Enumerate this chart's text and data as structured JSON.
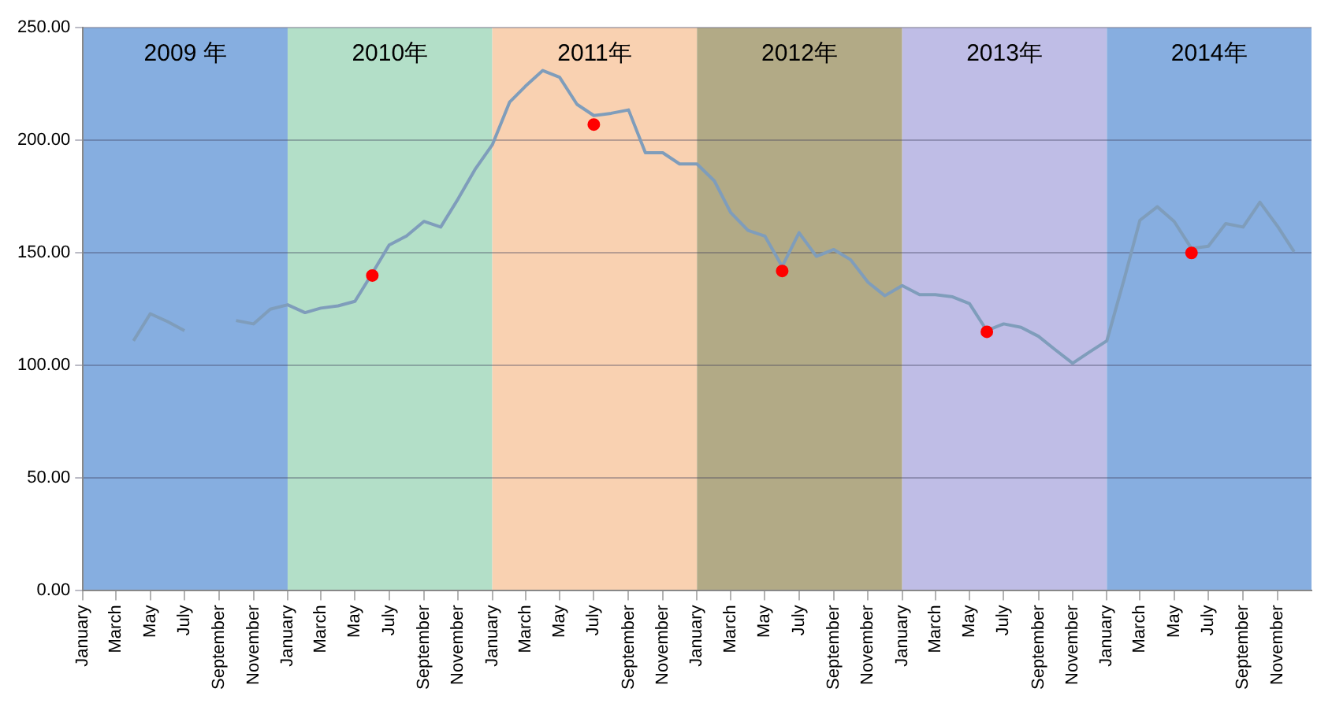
{
  "chart_data": {
    "type": "line",
    "x": [
      "2009-04",
      "2009-05",
      "2009-06",
      "2009-07",
      "2009-08",
      "2009-09",
      "2009-10",
      "2009-11",
      "2009-12",
      "2010-01",
      "2010-02",
      "2010-03",
      "2010-04",
      "2010-05",
      "2010-06",
      "2010-07",
      "2010-08",
      "2010-09",
      "2010-10",
      "2010-11",
      "2010-12",
      "2011-01",
      "2011-02",
      "2011-03",
      "2011-04",
      "2011-05",
      "2011-06",
      "2011-07",
      "2011-08",
      "2011-09",
      "2011-10",
      "2011-11",
      "2011-12",
      "2012-01",
      "2012-02",
      "2012-03",
      "2012-04",
      "2012-05",
      "2012-06",
      "2012-07",
      "2012-08",
      "2012-09",
      "2012-10",
      "2012-11",
      "2012-12",
      "2013-01",
      "2013-02",
      "2013-03",
      "2013-04",
      "2013-05",
      "2013-06",
      "2013-07",
      "2013-08",
      "2013-09",
      "2013-10",
      "2013-11",
      "2013-12",
      "2014-01",
      "2014-02",
      "2014-03",
      "2014-04",
      "2014-05",
      "2014-06",
      "2014-07",
      "2014-08",
      "2014-09",
      "2014-10",
      "2014-11",
      "2014-12"
    ],
    "series": [
      {
        "type": "line",
        "marker": "none",
        "color": "#7f9dbb",
        "values": [
          111,
          123,
          119.5,
          115.5,
          null,
          null,
          120,
          118.5,
          125,
          127,
          123.5,
          125.5,
          126.5,
          128.5,
          141,
          153.5,
          157.5,
          164,
          161.5,
          174,
          187,
          198,
          217,
          224,
          231,
          228,
          216,
          211,
          212,
          213.5,
          194.5,
          194.5,
          189.5,
          189.5,
          182,
          168,
          160,
          157.5,
          144,
          159,
          148.5,
          151.5,
          147,
          137,
          131,
          135.5,
          131.5,
          131.5,
          130.5,
          127.5,
          115.5,
          118.5,
          117,
          113,
          107,
          101,
          106,
          111,
          138.5,
          164.5,
          170.5,
          164,
          152,
          153,
          163,
          161.5,
          172.5,
          162,
          150.5
        ]
      },
      {
        "type": "scatter",
        "marker": "circle",
        "color": "#ff0000",
        "x": [
          "2010-06",
          "2011-07",
          "2012-06",
          "2013-06",
          "2014-06"
        ],
        "values": [
          140,
          207,
          142,
          115,
          150
        ]
      }
    ],
    "xlim": [
      "2009-01",
      "2015-01"
    ],
    "xticks": [
      {
        "value": "2009-01",
        "label": "January"
      },
      {
        "value": "2009-03",
        "label": "March"
      },
      {
        "value": "2009-05",
        "label": "May"
      },
      {
        "value": "2009-07",
        "label": "July"
      },
      {
        "value": "2009-09",
        "label": "September"
      },
      {
        "value": "2009-11",
        "label": "November"
      },
      {
        "value": "2010-01",
        "label": "January"
      },
      {
        "value": "2010-03",
        "label": "March"
      },
      {
        "value": "2010-05",
        "label": "May"
      },
      {
        "value": "2010-07",
        "label": "July"
      },
      {
        "value": "2010-09",
        "label": "September"
      },
      {
        "value": "2010-11",
        "label": "November"
      },
      {
        "value": "2011-01",
        "label": "January"
      },
      {
        "value": "2011-03",
        "label": "March"
      },
      {
        "value": "2011-05",
        "label": "May"
      },
      {
        "value": "2011-07",
        "label": "July"
      },
      {
        "value": "2011-09",
        "label": "September"
      },
      {
        "value": "2011-11",
        "label": "November"
      },
      {
        "value": "2012-01",
        "label": "January"
      },
      {
        "value": "2012-03",
        "label": "March"
      },
      {
        "value": "2012-05",
        "label": "May"
      },
      {
        "value": "2012-07",
        "label": "July"
      },
      {
        "value": "2012-09",
        "label": "September"
      },
      {
        "value": "2012-11",
        "label": "November"
      },
      {
        "value": "2013-01",
        "label": "January"
      },
      {
        "value": "2013-03",
        "label": "March"
      },
      {
        "value": "2013-05",
        "label": "May"
      },
      {
        "value": "2013-07",
        "label": "July"
      },
      {
        "value": "2013-09",
        "label": "September"
      },
      {
        "value": "2013-11",
        "label": "November"
      },
      {
        "value": "2014-01",
        "label": "January"
      },
      {
        "value": "2014-03",
        "label": "March"
      },
      {
        "value": "2014-05",
        "label": "May"
      },
      {
        "value": "2014-07",
        "label": "July"
      },
      {
        "value": "2014-09",
        "label": "September"
      },
      {
        "value": "2014-11",
        "label": "November"
      }
    ],
    "ylim": [
      0,
      250
    ],
    "yticks": [
      {
        "value": 0,
        "label": "0.00"
      },
      {
        "value": 50,
        "label": "50.00"
      },
      {
        "value": 100,
        "label": "100.00"
      },
      {
        "value": 150,
        "label": "150.00"
      },
      {
        "value": 200,
        "label": "200.00"
      },
      {
        "value": 250,
        "label": "250.00"
      }
    ],
    "grid": "y",
    "legend": false,
    "bands": [
      {
        "axis": "x",
        "from": "2009-01",
        "to": "2010-01",
        "label": "2009 年",
        "color": "#86aee0"
      },
      {
        "axis": "x",
        "from": "2010-01",
        "to": "2011-01",
        "label": "2010年",
        "color": "#b3dfc8"
      },
      {
        "axis": "x",
        "from": "2011-01",
        "to": "2012-01",
        "label": "2011年",
        "color": "#f9d1b1"
      },
      {
        "axis": "x",
        "from": "2012-01",
        "to": "2013-01",
        "label": "2012年",
        "color": "#b2aa86"
      },
      {
        "axis": "x",
        "from": "2013-01",
        "to": "2014-01",
        "label": "2013年",
        "color": "#bfbde6"
      },
      {
        "axis": "x",
        "from": "2014-01",
        "to": "2015-01",
        "label": "2014年",
        "color": "#87aee0"
      }
    ]
  }
}
